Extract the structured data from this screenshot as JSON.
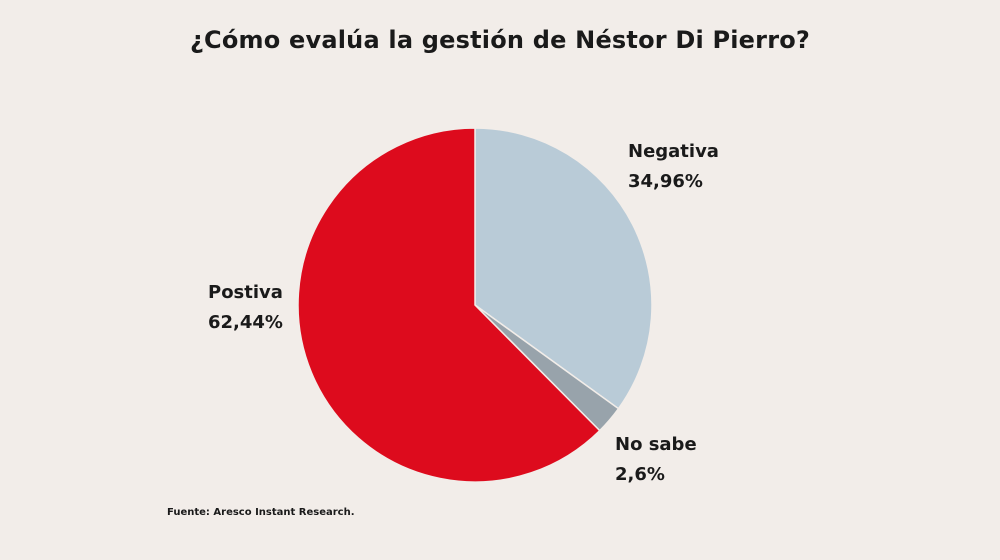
{
  "chart_data": {
    "type": "pie",
    "title": "¿Cómo evalúa la gestión de Néstor Di Pierro?",
    "slices": [
      {
        "label": "Negativa",
        "value": 34.96,
        "value_text": "34,96%",
        "color": "#b9cbd7"
      },
      {
        "label": "No sabe",
        "value": 2.6,
        "value_text": "2,6%",
        "color": "#98a3ab"
      },
      {
        "label": "Postiva",
        "value": 62.44,
        "value_text": "62,44%",
        "color": "#dd0b1d"
      }
    ],
    "source": "Fuente: Aresco Instant Research."
  }
}
